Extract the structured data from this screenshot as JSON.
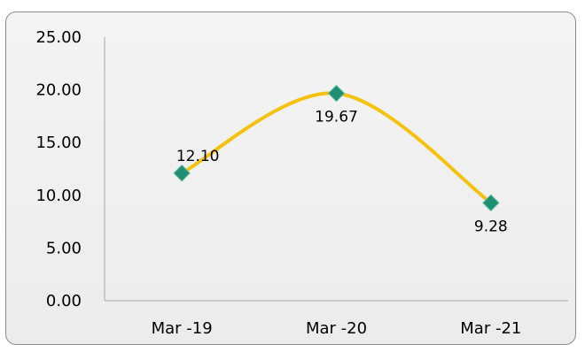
{
  "chart_data": {
    "type": "line",
    "categories": [
      "Mar -19",
      "Mar -20",
      "Mar -21"
    ],
    "values": [
      12.1,
      19.67,
      9.28
    ],
    "data_labels": [
      "12.10",
      "19.67",
      "9.28"
    ],
    "ylim": [
      0,
      25
    ],
    "yticks": [
      "0.00",
      "5.00",
      "10.00",
      "15.00",
      "20.00",
      "25.00"
    ],
    "smooth": true,
    "grid": false,
    "legend": "none",
    "colors": {
      "line": "#f4c20d",
      "marker": "#1f8f74",
      "axis": "#a6a6a6"
    }
  }
}
